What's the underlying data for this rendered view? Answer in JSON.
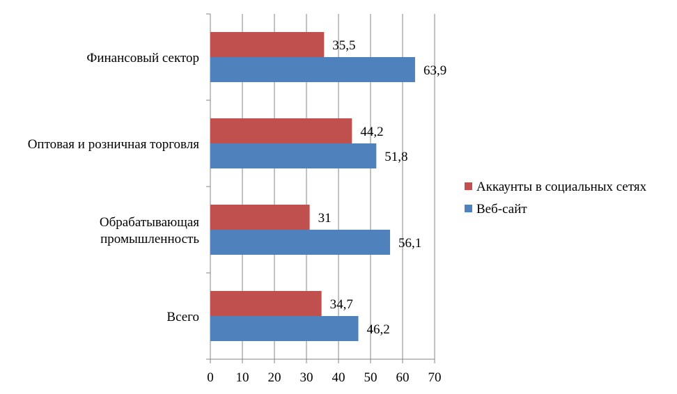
{
  "chart_data": {
    "type": "bar",
    "orientation": "horizontal",
    "categories": [
      "Всего",
      "Обрабатывающая промышленность",
      "Оптовая и розничная торговля",
      "Финансовый сектор"
    ],
    "category_lines": [
      [
        "Всего"
      ],
      [
        "Обрабатывающая",
        "промышленность"
      ],
      [
        "Оптовая и розничная торговля"
      ],
      [
        "Финансовый сектор"
      ]
    ],
    "series": [
      {
        "name": "Аккаунты в социальных сетях",
        "values": [
          34.7,
          31,
          44.2,
          35.5
        ],
        "labels": [
          "34,7",
          "31",
          "44,2",
          "35,5"
        ],
        "color": "#c0504d"
      },
      {
        "name": "Веб-сайт",
        "values": [
          46.2,
          56.1,
          51.8,
          63.9
        ],
        "labels": [
          "46,2",
          "56,1",
          "51,8",
          "63,9"
        ],
        "color": "#4f81bd"
      }
    ],
    "xlim": [
      0,
      70
    ],
    "xticks": [
      0,
      10,
      20,
      30,
      40,
      50,
      60,
      70
    ],
    "grid": true,
    "legend_position": "right"
  }
}
